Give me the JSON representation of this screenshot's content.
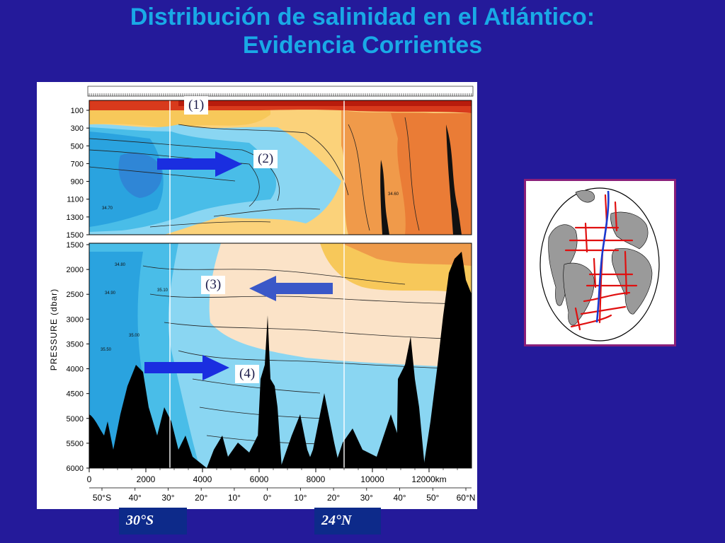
{
  "title": {
    "line1": "Distribución de salinidad en el Atlántico:",
    "line2": "Evidencia Corrientes"
  },
  "annotations": [
    "(1)",
    "(2)",
    "(3)",
    "(4)"
  ],
  "latitude_markers": [
    "30°S",
    "24°N"
  ],
  "colors": {
    "background": "#241a9a",
    "title": "#19a9e6",
    "arrow": "#1a2ee0",
    "map_track": "#e01010",
    "map_path": "#1a3ad0"
  },
  "chart_data": {
    "type": "heatmap",
    "quantity": "salinity",
    "ylabel": "PRESSURE (dbar)",
    "y_inverted": true,
    "y_break_at": 1500,
    "upper_panel_ticks": [
      "100",
      "300",
      "500",
      "700",
      "900",
      "1100",
      "1300",
      "1500"
    ],
    "lower_panel_ticks": [
      "1500",
      "2000",
      "2500",
      "3000",
      "3500",
      "4000",
      "4500",
      "5000",
      "5500",
      "6000"
    ],
    "xlim": [
      0,
      13500
    ],
    "x_ticks_km": [
      "0",
      "2000",
      "4000",
      "6000",
      "8000",
      "10000",
      "12000km"
    ],
    "lat_ticks": [
      "50°S",
      "40°",
      "30°",
      "20°",
      "10°",
      "0°",
      "10°",
      "20°",
      "30°",
      "40°",
      "50°",
      "60°N"
    ],
    "marker_lines_km": [
      2850,
      9000
    ],
    "contour_labels": [
      "34.70",
      "34.80",
      "34.90",
      "35.00",
      "35.10",
      "35.50",
      "34.60"
    ],
    "legend": false,
    "grid": false
  }
}
